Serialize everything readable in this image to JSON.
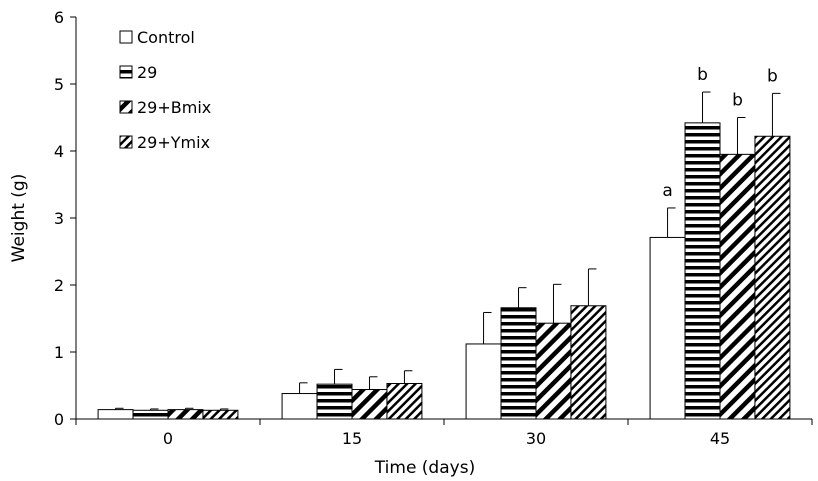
{
  "chart_data": {
    "type": "bar",
    "title": "",
    "xlabel": "Time (days)",
    "ylabel": "Weight (g)",
    "categories": [
      "0",
      "15",
      "30",
      "45"
    ],
    "ylim": [
      0,
      6
    ],
    "yticks": [
      0,
      1,
      2,
      3,
      4,
      5,
      6
    ],
    "grid": false,
    "legend_position": "top-left",
    "series": [
      {
        "name": "Control",
        "pattern": "open",
        "values": [
          0.14,
          0.38,
          1.12,
          2.71
        ],
        "errors": [
          0.02,
          0.16,
          0.47,
          0.44
        ]
      },
      {
        "name": "29",
        "pattern": "horizontal-stripes",
        "values": [
          0.13,
          0.52,
          1.66,
          4.42
        ],
        "errors": [
          0.02,
          0.22,
          0.3,
          0.46
        ]
      },
      {
        "name": "29+Bmix",
        "pattern": "diagonal-wide",
        "values": [
          0.14,
          0.44,
          1.43,
          3.95
        ],
        "errors": [
          0.02,
          0.19,
          0.58,
          0.55
        ]
      },
      {
        "name": "29+Ymix",
        "pattern": "diagonal-dense",
        "values": [
          0.13,
          0.53,
          1.69,
          4.22
        ],
        "errors": [
          0.02,
          0.19,
          0.55,
          0.64
        ]
      }
    ],
    "annotations": [
      {
        "category": "45",
        "series": "Control",
        "text": "a"
      },
      {
        "category": "45",
        "series": "29",
        "text": "b"
      },
      {
        "category": "45",
        "series": "29+Bmix",
        "text": "b"
      },
      {
        "category": "45",
        "series": "29+Ymix",
        "text": "b"
      }
    ]
  }
}
